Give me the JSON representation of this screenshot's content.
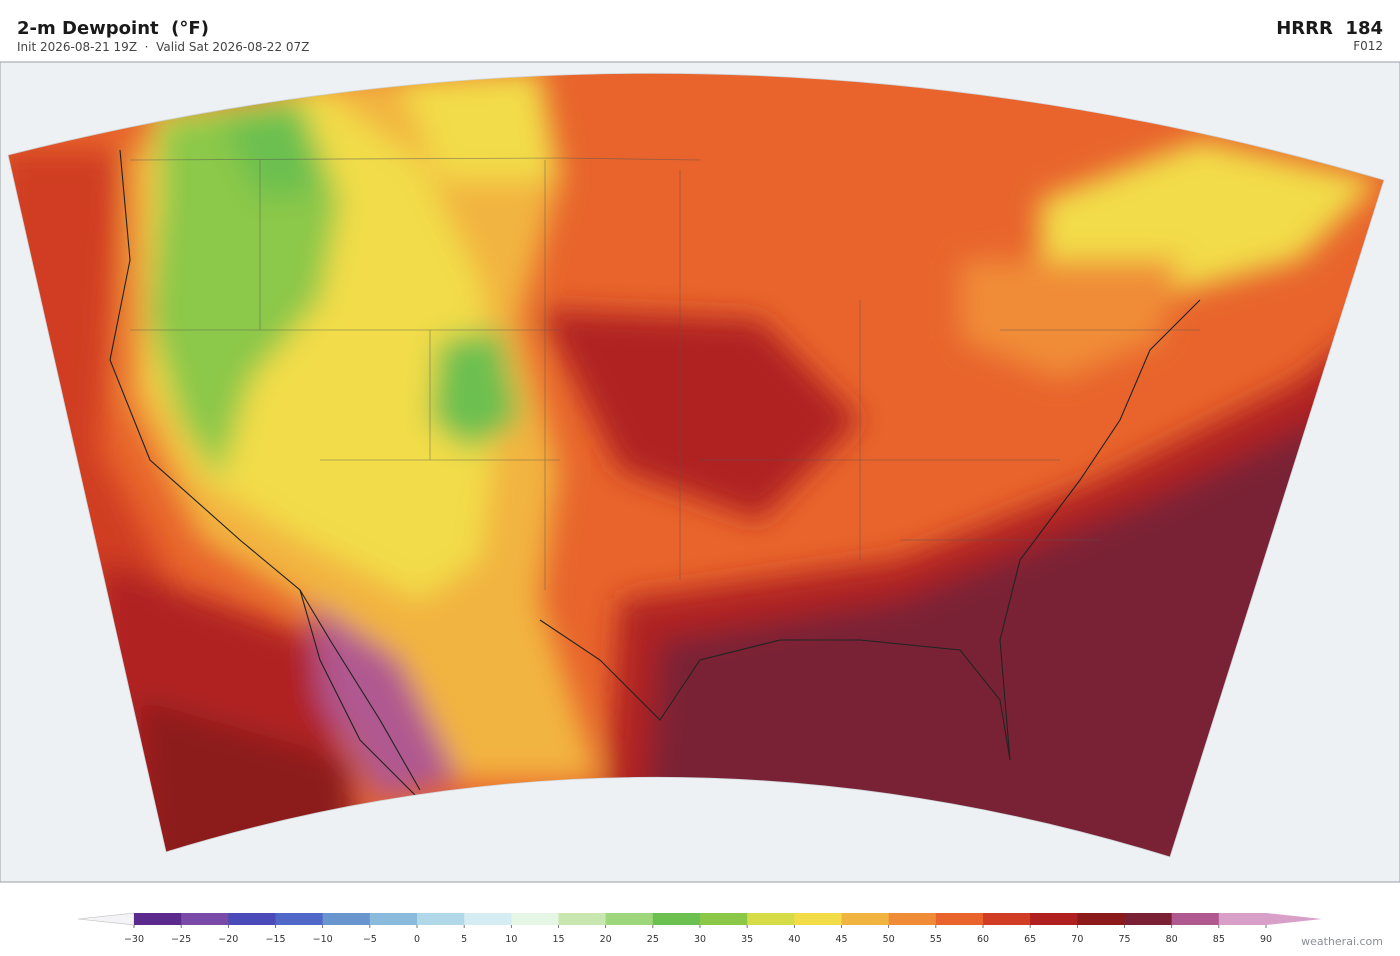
{
  "header": {
    "title": "2-m Dewpoint  (°F)",
    "subtitle": "Init 2026-08-21 19Z  ·  Valid Sat 2026-08-22 07Z",
    "model": "HRRR  184",
    "forecast_hour": "F012"
  },
  "colorbar": {
    "ticks": [
      {
        "value": -30,
        "label": "−30"
      },
      {
        "value": -25,
        "label": "−25"
      },
      {
        "value": -20,
        "label": "−20"
      },
      {
        "value": -15,
        "label": "−15"
      },
      {
        "value": -10,
        "label": "−10"
      },
      {
        "value": -5,
        "label": "−5"
      },
      0,
      5,
      10,
      15,
      20,
      25,
      30,
      35,
      40,
      45,
      50,
      55,
      60,
      65,
      70,
      75,
      80,
      85,
      90
    ],
    "colors": [
      "#5b2a8c",
      "#7a4aa8",
      "#4a4ab8",
      "#5068c8",
      "#6a96d0",
      "#8abadc",
      "#b0d8e8",
      "#d4ecf2",
      "#e6f6e4",
      "#c8e6b0",
      "#9ed67c",
      "#6cc050",
      "#8cc848",
      "#d6dc48",
      "#f2dc48",
      "#f2b440",
      "#f08c38",
      "#e8642c",
      "#d03c24",
      "#b02020",
      "#8c1a1a",
      "#7a2034",
      "#b05890",
      "#d8a0c8"
    ],
    "extend_colors": [
      "#f4f4f6",
      "#d8a0c8"
    ]
  },
  "credit": "weatherai.com"
}
